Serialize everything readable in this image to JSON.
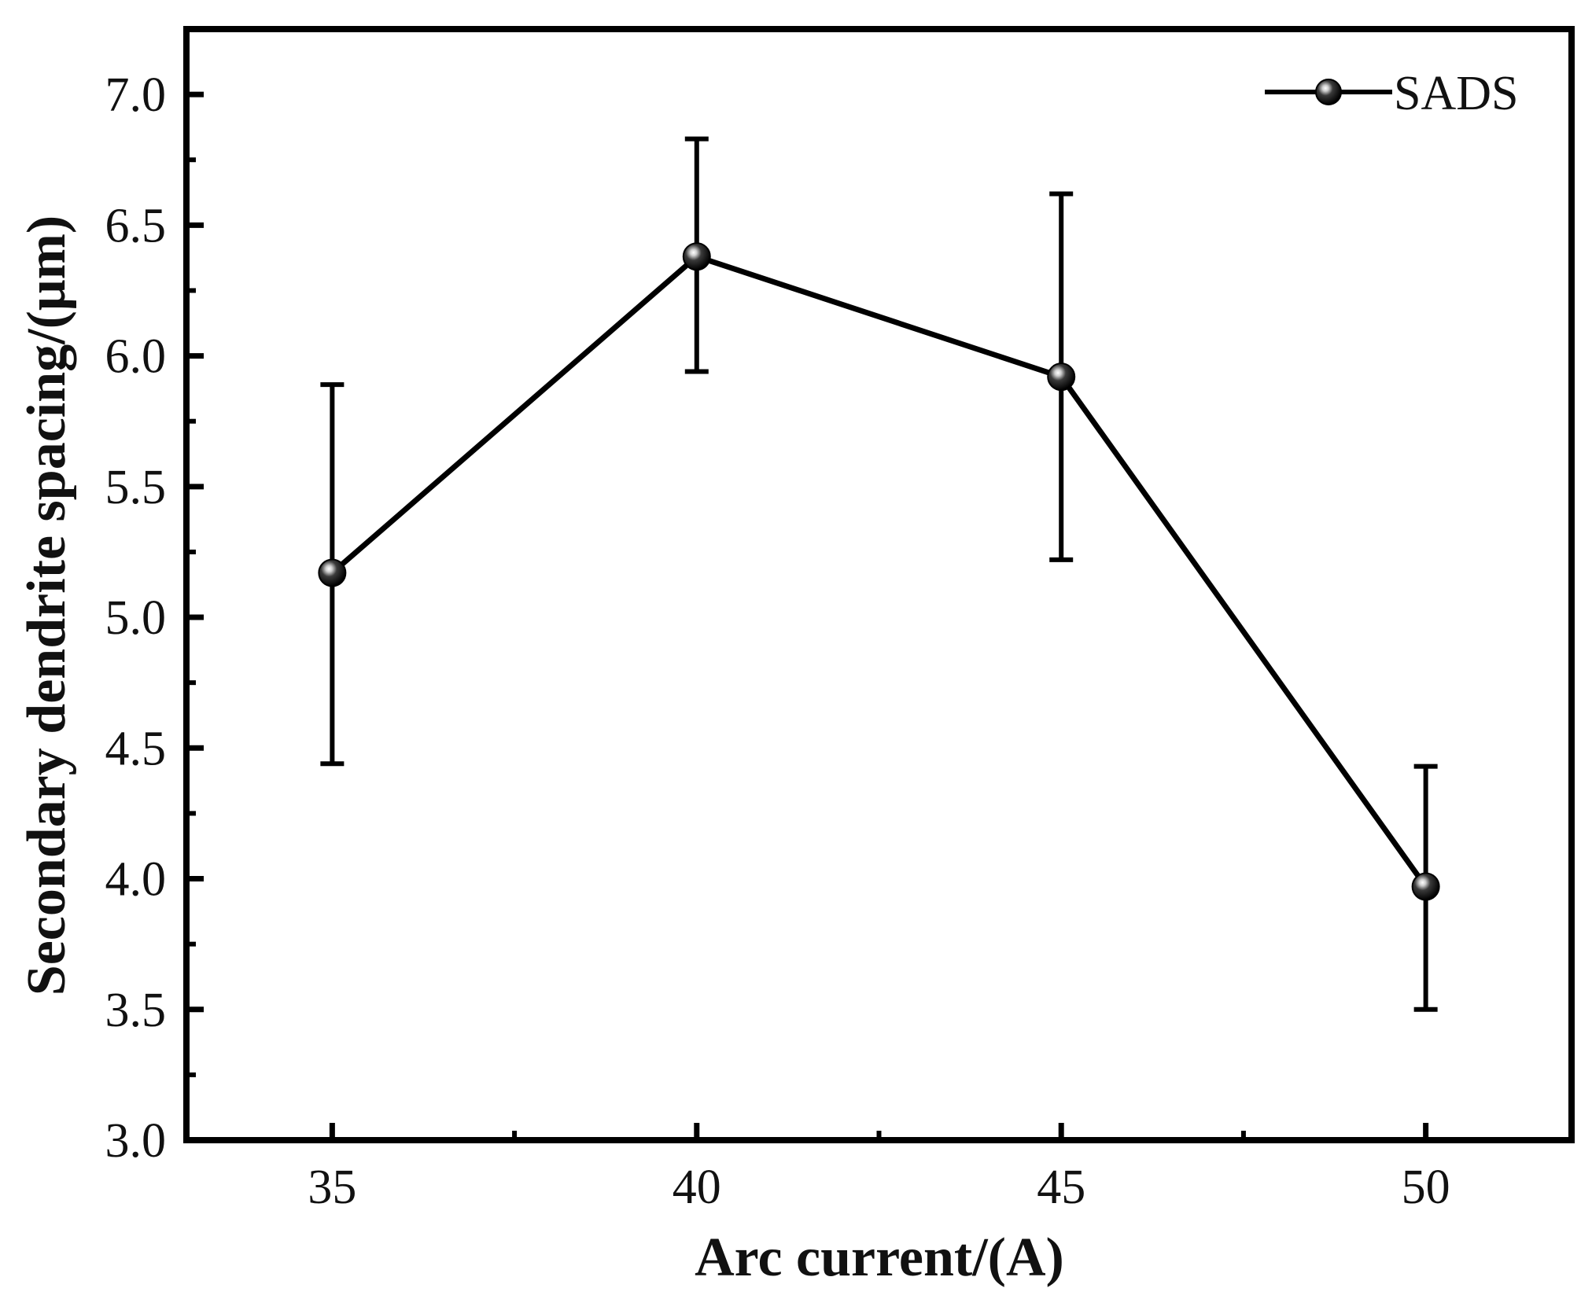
{
  "chart_data": {
    "type": "line",
    "xlabel": "Arc current/(A)",
    "ylabel": "Secondary dendrite spacing/(μm)",
    "xlim": [
      33,
      52
    ],
    "ylim": [
      3.0,
      7.25
    ],
    "x_ticks": [
      35,
      40,
      45,
      50
    ],
    "x_tick_labels": [
      "35",
      "40",
      "45",
      "50"
    ],
    "x_minor_ticks": [
      37.5,
      42.5,
      47.5
    ],
    "y_ticks": [
      3.0,
      3.5,
      4.0,
      4.5,
      5.0,
      5.5,
      6.0,
      6.5,
      7.0
    ],
    "y_tick_labels": [
      "3.0",
      "3.5",
      "4.0",
      "4.5",
      "5.0",
      "5.5",
      "6.0",
      "6.5",
      "7.0"
    ],
    "y_minor_ticks": [
      3.25,
      3.75,
      4.25,
      4.75,
      5.25,
      5.75,
      6.25,
      6.75
    ],
    "grid": false,
    "legend_position": "top-right",
    "series": [
      {
        "name": "SADS",
        "color": "#000000",
        "marker": "sphere",
        "x": [
          35,
          40,
          45,
          50
        ],
        "y": [
          5.17,
          6.38,
          5.92,
          3.97
        ],
        "error_low": [
          4.44,
          5.94,
          5.22,
          3.5
        ],
        "error_high": [
          5.89,
          6.83,
          6.62,
          4.43
        ]
      }
    ]
  }
}
